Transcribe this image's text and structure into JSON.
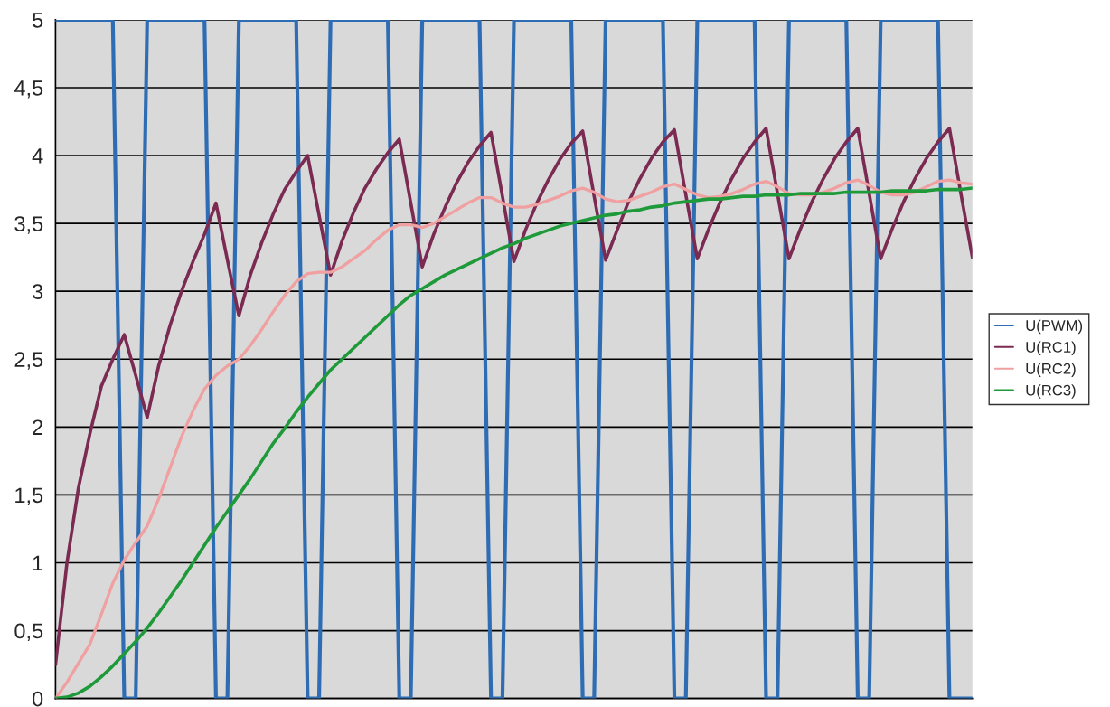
{
  "chart_data": {
    "type": "line",
    "categories": [
      null,
      null,
      null,
      null,
      null,
      null,
      null,
      null,
      null,
      null,
      null,
      null,
      null,
      null,
      null,
      null,
      null,
      null,
      null,
      null,
      null,
      null,
      null,
      null,
      null,
      null,
      null,
      null,
      null,
      null,
      null,
      null,
      null,
      null,
      null,
      null,
      null,
      null,
      null,
      null,
      null,
      null,
      null,
      null,
      null,
      null,
      null,
      null,
      null,
      null,
      null,
      null,
      null,
      null,
      null,
      null,
      null,
      null,
      null,
      null,
      null,
      null,
      null,
      null,
      null,
      null,
      null,
      null,
      null,
      null,
      null,
      null,
      null,
      null,
      null,
      null,
      null,
      null,
      null,
      null,
      null
    ],
    "series": [
      {
        "name": "U(PWM)",
        "color": "#2e6db4",
        "values": [
          5,
          5,
          5,
          5,
          5,
          5,
          0,
          0,
          5,
          5,
          5,
          5,
          5,
          5,
          0,
          0,
          5,
          5,
          5,
          5,
          5,
          5,
          0,
          0,
          5,
          5,
          5,
          5,
          5,
          5,
          0,
          0,
          5,
          5,
          5,
          5,
          5,
          5,
          0,
          0,
          5,
          5,
          5,
          5,
          5,
          5,
          0,
          0,
          5,
          5,
          5,
          5,
          5,
          5,
          0,
          0,
          5,
          5,
          5,
          5,
          5,
          5,
          0,
          0,
          5,
          5,
          5,
          5,
          5,
          5,
          0,
          0,
          5,
          5,
          5,
          5,
          5,
          5,
          0,
          0,
          0
        ]
      },
      {
        "name": "U(RC1)",
        "color": "#7b2a52",
        "values": [
          0.25,
          1.0,
          1.55,
          1.95,
          2.3,
          2.5,
          2.68,
          2.38,
          2.07,
          2.45,
          2.75,
          3.0,
          3.22,
          3.42,
          3.65,
          3.23,
          2.82,
          3.12,
          3.36,
          3.57,
          3.75,
          3.88,
          4.0,
          3.56,
          3.12,
          3.37,
          3.58,
          3.76,
          3.9,
          4.02,
          4.12,
          3.65,
          3.18,
          3.42,
          3.62,
          3.8,
          3.95,
          4.07,
          4.17,
          3.7,
          3.22,
          3.45,
          3.65,
          3.82,
          3.97,
          4.09,
          4.18,
          3.7,
          3.23,
          3.45,
          3.66,
          3.83,
          3.98,
          4.1,
          4.19,
          3.71,
          3.24,
          3.46,
          3.66,
          3.83,
          3.98,
          4.1,
          4.2,
          3.72,
          3.24,
          3.46,
          3.66,
          3.83,
          3.98,
          4.1,
          4.2,
          3.72,
          3.24,
          3.46,
          3.66,
          3.83,
          3.98,
          4.1,
          4.2,
          3.72,
          3.25
        ]
      },
      {
        "name": "U(RC2)",
        "color": "#f0a0a0",
        "values": [
          0,
          0.12,
          0.26,
          0.4,
          0.62,
          0.85,
          1.02,
          1.15,
          1.27,
          1.47,
          1.7,
          1.93,
          2.12,
          2.28,
          2.38,
          2.45,
          2.5,
          2.6,
          2.72,
          2.85,
          2.97,
          3.07,
          3.13,
          3.14,
          3.14,
          3.18,
          3.24,
          3.3,
          3.38,
          3.45,
          3.49,
          3.49,
          3.47,
          3.5,
          3.55,
          3.6,
          3.65,
          3.69,
          3.69,
          3.65,
          3.62,
          3.62,
          3.64,
          3.67,
          3.7,
          3.74,
          3.76,
          3.73,
          3.68,
          3.66,
          3.67,
          3.7,
          3.73,
          3.77,
          3.79,
          3.75,
          3.71,
          3.69,
          3.7,
          3.72,
          3.75,
          3.79,
          3.81,
          3.77,
          3.72,
          3.71,
          3.71,
          3.73,
          3.76,
          3.8,
          3.82,
          3.78,
          3.73,
          3.71,
          3.71,
          3.73,
          3.77,
          3.81,
          3.82,
          3.8,
          3.79
        ]
      },
      {
        "name": "U(RC3)",
        "color": "#1f9a3a",
        "values": [
          0,
          0.01,
          0.04,
          0.09,
          0.16,
          0.24,
          0.33,
          0.42,
          0.52,
          0.63,
          0.75,
          0.87,
          1.0,
          1.13,
          1.26,
          1.38,
          1.5,
          1.62,
          1.75,
          1.88,
          1.99,
          2.11,
          2.22,
          2.32,
          2.42,
          2.5,
          2.58,
          2.66,
          2.74,
          2.82,
          2.9,
          2.97,
          3.02,
          3.07,
          3.12,
          3.16,
          3.2,
          3.24,
          3.28,
          3.32,
          3.35,
          3.39,
          3.42,
          3.45,
          3.48,
          3.5,
          3.52,
          3.54,
          3.56,
          3.57,
          3.59,
          3.6,
          3.62,
          3.63,
          3.65,
          3.66,
          3.67,
          3.68,
          3.68,
          3.69,
          3.7,
          3.7,
          3.71,
          3.71,
          3.71,
          3.72,
          3.72,
          3.72,
          3.72,
          3.73,
          3.73,
          3.73,
          3.73,
          3.74,
          3.74,
          3.74,
          3.74,
          3.75,
          3.75,
          3.75,
          3.76
        ]
      }
    ],
    "ylim": [
      0,
      5
    ],
    "yticks": [
      0,
      {
        "value": 0.5,
        "label": "0,5"
      },
      1,
      {
        "value": 1.5,
        "label": "1,5"
      },
      2,
      {
        "value": 2.5,
        "label": "2,5"
      },
      3,
      {
        "value": 3.5,
        "label": "3,5"
      },
      4,
      {
        "value": 4.5,
        "label": "4,5"
      },
      5
    ],
    "grid": "y",
    "legend": "right",
    "tick_labels": "y"
  }
}
